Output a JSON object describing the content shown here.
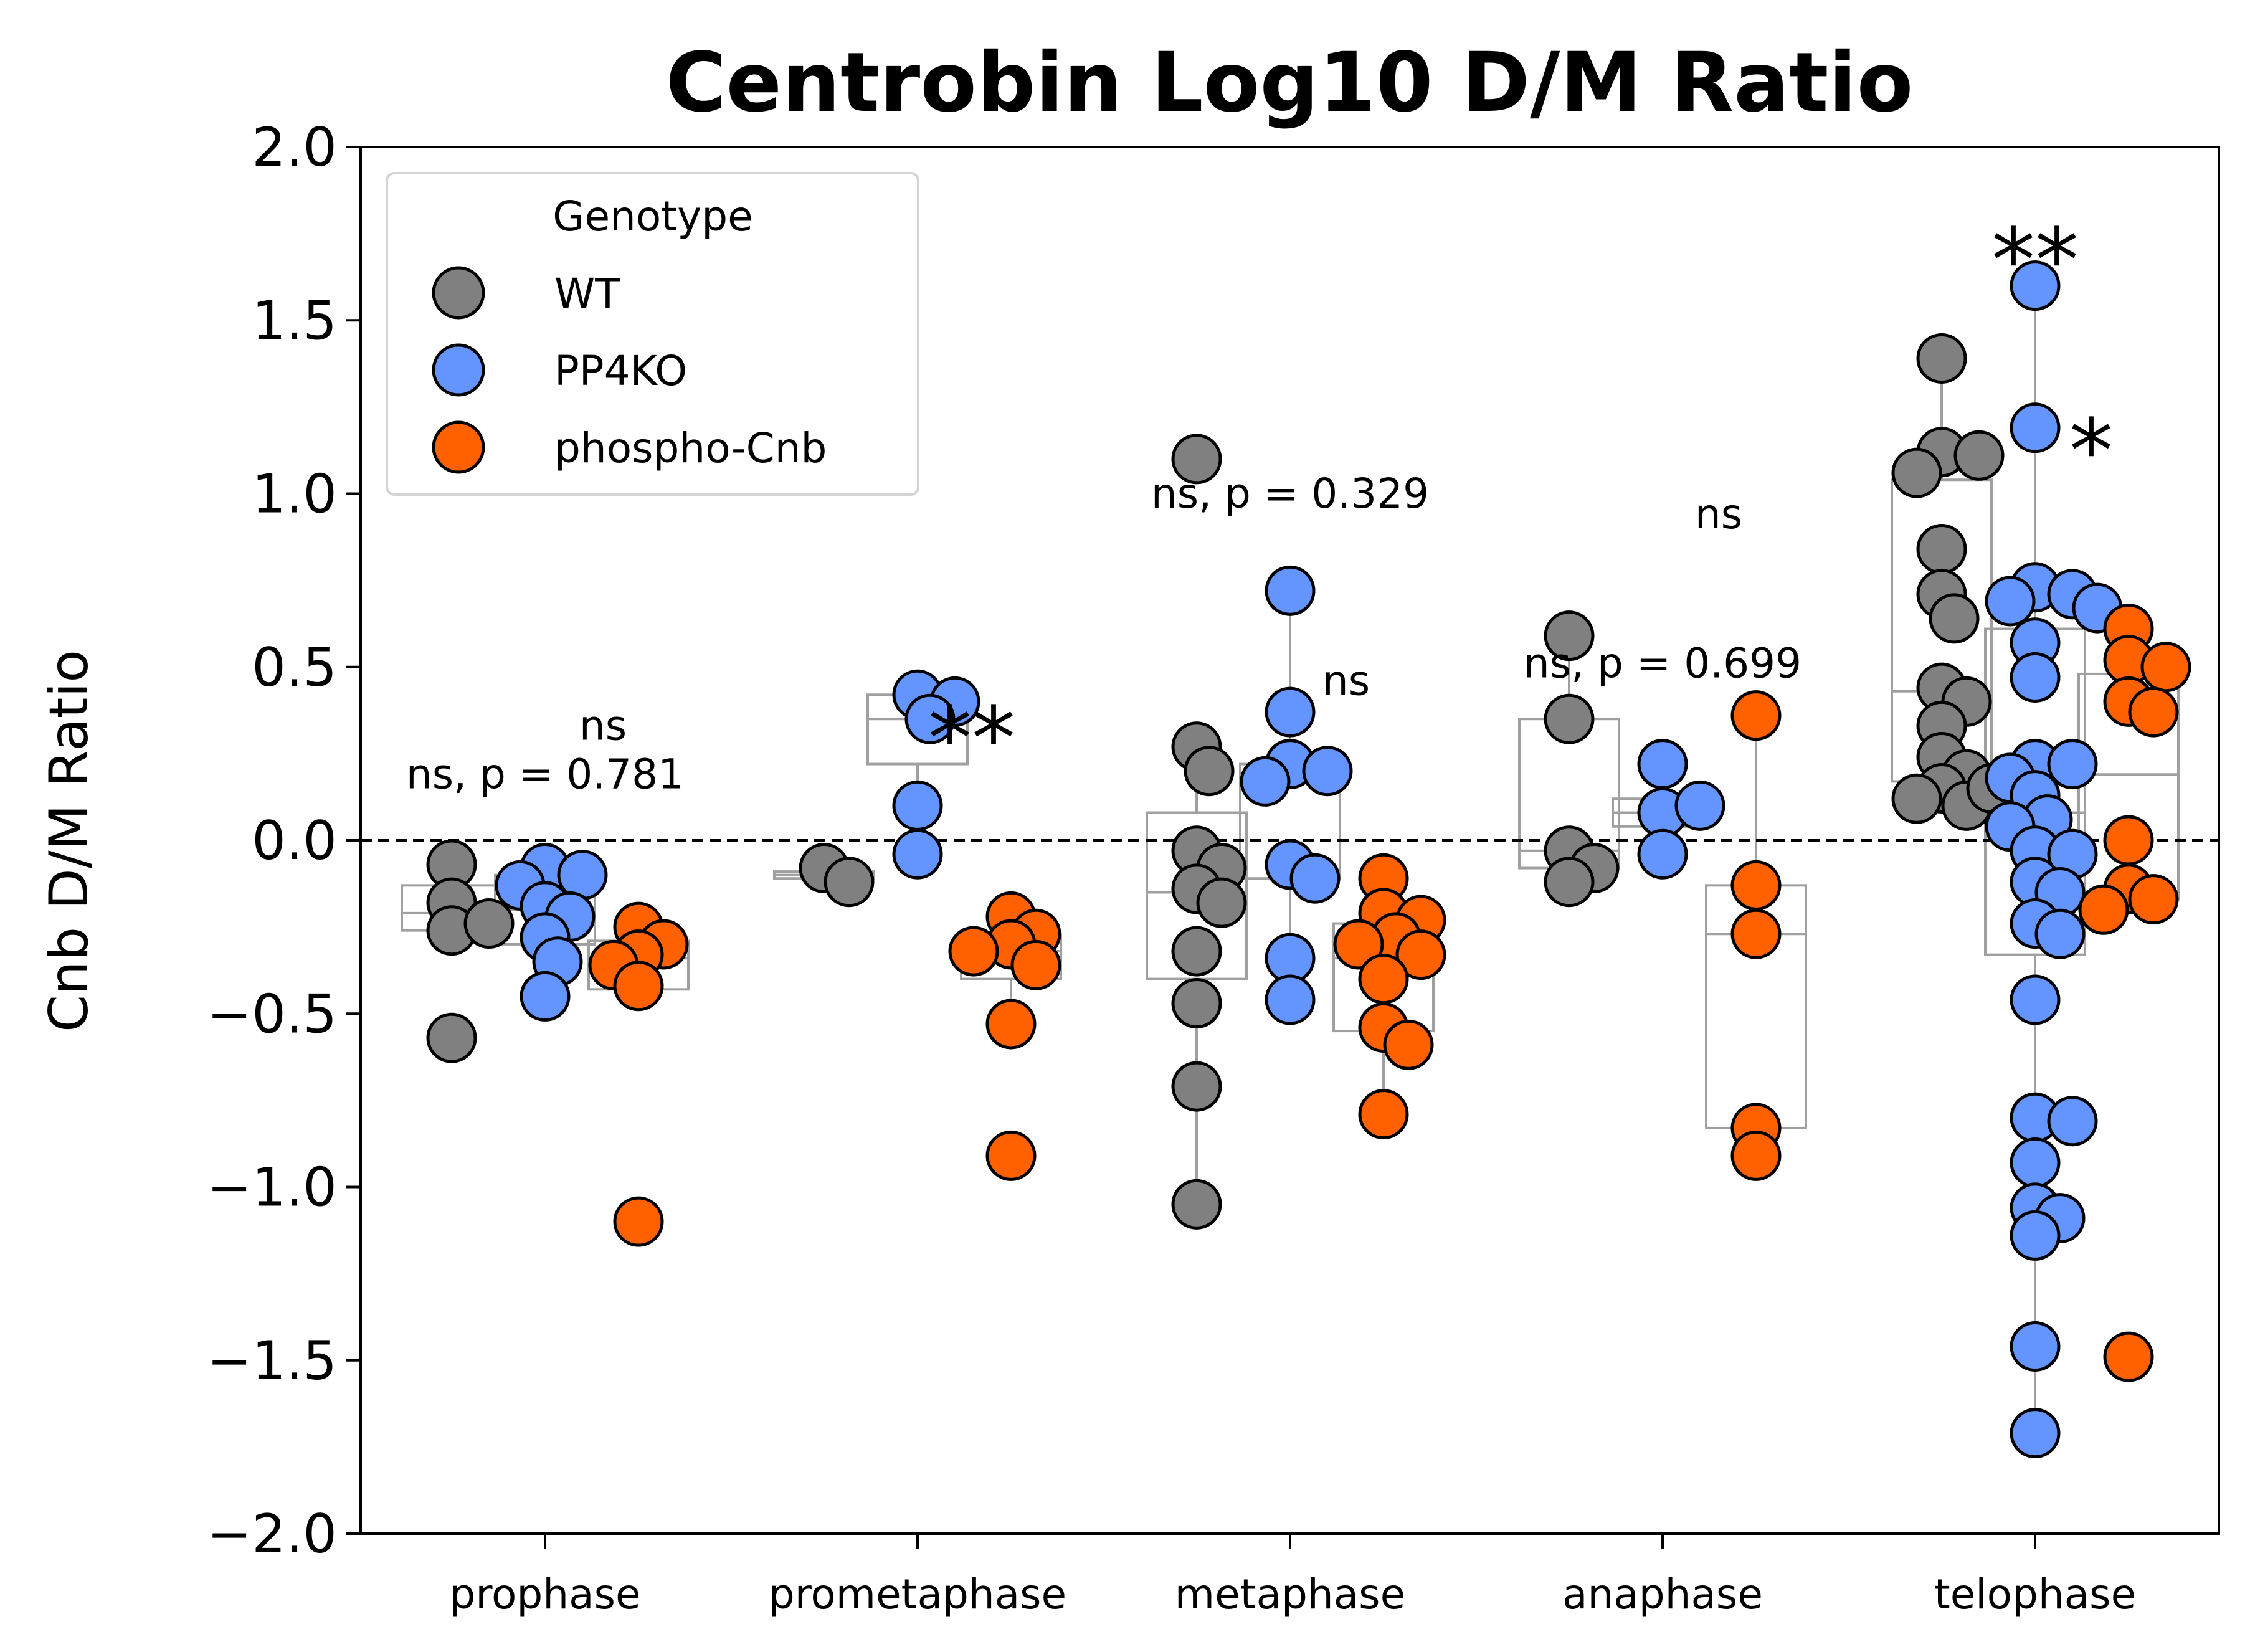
{
  "chart_data": {
    "type": "scatter",
    "title": "Centrobin Log10 D/M Ratio",
    "xlabel": "",
    "ylabel": "Cnb D/M Ratio",
    "ylim": [
      -2.0,
      2.0
    ],
    "yticks": [
      2.0,
      1.5,
      1.0,
      0.5,
      0.0,
      -0.5,
      -1.0,
      -1.5,
      -2.0
    ],
    "ytick_labels": [
      "2.0",
      "1.5",
      "1.0",
      "0.5",
      "0.0",
      "−0.5",
      "−1.0",
      "−1.5",
      "−2.0"
    ],
    "reference_line": 0.0,
    "grid": false,
    "categories": [
      "prophase",
      "prometaphase",
      "metaphase",
      "anaphase",
      "telophase"
    ],
    "legend": {
      "title": "Genotype",
      "position": "upper-left",
      "entries": [
        "WT",
        "PP4KO",
        "phospho-Cnb"
      ]
    },
    "series": [
      {
        "name": "WT",
        "color": "#808080",
        "points": {
          "prophase": [
            -0.07,
            -0.18,
            -0.26,
            -0.24,
            -0.57
          ],
          "prometaphase": [
            -0.08,
            -0.12
          ],
          "metaphase": [
            1.1,
            0.27,
            0.2,
            -0.03,
            -0.08,
            -0.14,
            -0.18,
            -0.32,
            -0.47,
            -0.71,
            -1.05
          ],
          "anaphase": [
            0.59,
            0.35,
            -0.03,
            -0.08,
            -0.12
          ],
          "telophase": [
            1.39,
            1.12,
            1.11,
            1.06,
            0.84,
            0.71,
            0.64,
            0.44,
            0.4,
            0.33,
            0.24,
            0.19,
            0.15,
            0.12,
            0.1,
            0.15
          ]
        },
        "box": {
          "prophase": {
            "q1": -0.26,
            "median": -0.21,
            "q3": -0.13,
            "lo": -0.3,
            "hi": -0.05
          },
          "prometaphase": {
            "q1": -0.11,
            "median": -0.1,
            "q3": -0.09,
            "lo": -0.12,
            "hi": -0.08
          },
          "metaphase": {
            "q1": -0.4,
            "median": -0.15,
            "q3": 0.08,
            "lo": -1.05,
            "hi": 0.28
          },
          "anaphase": {
            "q1": -0.08,
            "median": -0.03,
            "q3": 0.35,
            "lo": -0.12,
            "hi": 0.59
          },
          "telophase": {
            "q1": 0.17,
            "median": 0.43,
            "q3": 1.04,
            "lo": 0.1,
            "hi": 1.39
          }
        }
      },
      {
        "name": "PP4KO",
        "color": "#6495ff",
        "points": {
          "prophase": [
            -0.08,
            -0.1,
            -0.13,
            -0.19,
            -0.22,
            -0.28,
            -0.35,
            -0.45
          ],
          "prometaphase": [
            0.42,
            0.4,
            0.35,
            0.1,
            -0.04
          ],
          "metaphase": [
            0.72,
            0.37,
            0.22,
            0.2,
            0.17,
            -0.07,
            -0.11,
            -0.34,
            -0.46
          ],
          "anaphase": [
            0.22,
            0.08,
            0.1,
            -0.04
          ],
          "telophase": [
            1.6,
            1.19,
            0.73,
            0.71,
            0.69,
            0.67,
            0.57,
            0.47,
            0.22,
            0.22,
            0.18,
            0.13,
            0.06,
            0.04,
            -0.03,
            -0.04,
            -0.12,
            -0.15,
            -0.24,
            -0.27,
            -0.46,
            -0.8,
            -0.81,
            -0.93,
            -1.06,
            -1.09,
            -1.14,
            -1.46,
            -1.71
          ]
        },
        "box": {
          "prophase": {
            "q1": -0.3,
            "median": -0.2,
            "q3": -0.1,
            "lo": -0.45,
            "hi": -0.08
          },
          "prometaphase": {
            "q1": 0.22,
            "median": 0.35,
            "q3": 0.42,
            "lo": -0.04,
            "hi": 0.42
          },
          "metaphase": {
            "q1": -0.11,
            "median": 0.18,
            "q3": 0.22,
            "lo": -0.46,
            "hi": 0.72
          },
          "anaphase": {
            "q1": 0.04,
            "median": 0.08,
            "q3": 0.12,
            "lo": -0.04,
            "hi": 0.22
          },
          "telophase": {
            "q1": -0.33,
            "median": 0.08,
            "q3": 0.61,
            "lo": -1.71,
            "hi": 1.6
          }
        }
      },
      {
        "name": "phospho-Cnb",
        "color": "#ff6000",
        "points": {
          "prophase": [
            -0.25,
            -0.3,
            -0.33,
            -0.36,
            -0.42,
            -1.1
          ],
          "prometaphase": [
            -0.22,
            -0.27,
            -0.3,
            -0.32,
            -0.36,
            -0.53,
            -0.91
          ],
          "metaphase": [
            -0.11,
            -0.21,
            -0.23,
            -0.28,
            -0.3,
            -0.33,
            -0.4,
            -0.54,
            -0.59,
            -0.79
          ],
          "anaphase": [
            0.36,
            -0.13,
            -0.27,
            -0.83,
            -0.91
          ],
          "telophase": [
            0.61,
            0.52,
            0.5,
            0.4,
            0.37,
            0.0,
            -0.14,
            -0.17,
            -0.2,
            -1.49
          ]
        },
        "box": {
          "prophase": {
            "q1": -0.43,
            "median": -0.34,
            "q3": -0.29,
            "lo": -0.45,
            "hi": -0.25
          },
          "prometaphase": {
            "q1": -0.4,
            "median": -0.32,
            "q3": -0.27,
            "lo": -0.53,
            "hi": -0.22
          },
          "metaphase": {
            "q1": -0.55,
            "median": -0.34,
            "q3": -0.24,
            "lo": -0.79,
            "hi": -0.11
          },
          "anaphase": {
            "q1": -0.83,
            "median": -0.27,
            "q3": -0.13,
            "lo": -0.91,
            "hi": 0.36
          },
          "telophase": {
            "q1": -0.17,
            "median": 0.19,
            "q3": 0.48,
            "lo": -0.2,
            "hi": 0.61
          }
        }
      }
    ],
    "annotations": [
      {
        "text": "ns, p = 0.781",
        "category": "prophase",
        "offset": 0.0,
        "y": 0.15,
        "style": "small"
      },
      {
        "text": "ns",
        "category": "prophase",
        "offset": 0.31,
        "y": 0.29,
        "style": "small"
      },
      {
        "text": "**",
        "category": "prometaphase",
        "offset": 0.29,
        "y": 0.35,
        "style": "star"
      },
      {
        "text": "ns, p = 0.329",
        "category": "metaphase",
        "offset": 0.0,
        "y": 0.96,
        "style": "small"
      },
      {
        "text": "ns",
        "category": "metaphase",
        "offset": 0.3,
        "y": 0.42,
        "style": "small"
      },
      {
        "text": "ns, p = 0.699",
        "category": "anaphase",
        "offset": 0.0,
        "y": 0.47,
        "style": "small"
      },
      {
        "text": "ns",
        "category": "anaphase",
        "offset": 0.3,
        "y": 0.9,
        "style": "small"
      },
      {
        "text": "**",
        "category": "telophase",
        "offset": 0.0,
        "y": 1.73,
        "style": "star"
      },
      {
        "text": "*",
        "category": "telophase",
        "offset": 0.3,
        "y": 1.18,
        "style": "star"
      }
    ]
  }
}
